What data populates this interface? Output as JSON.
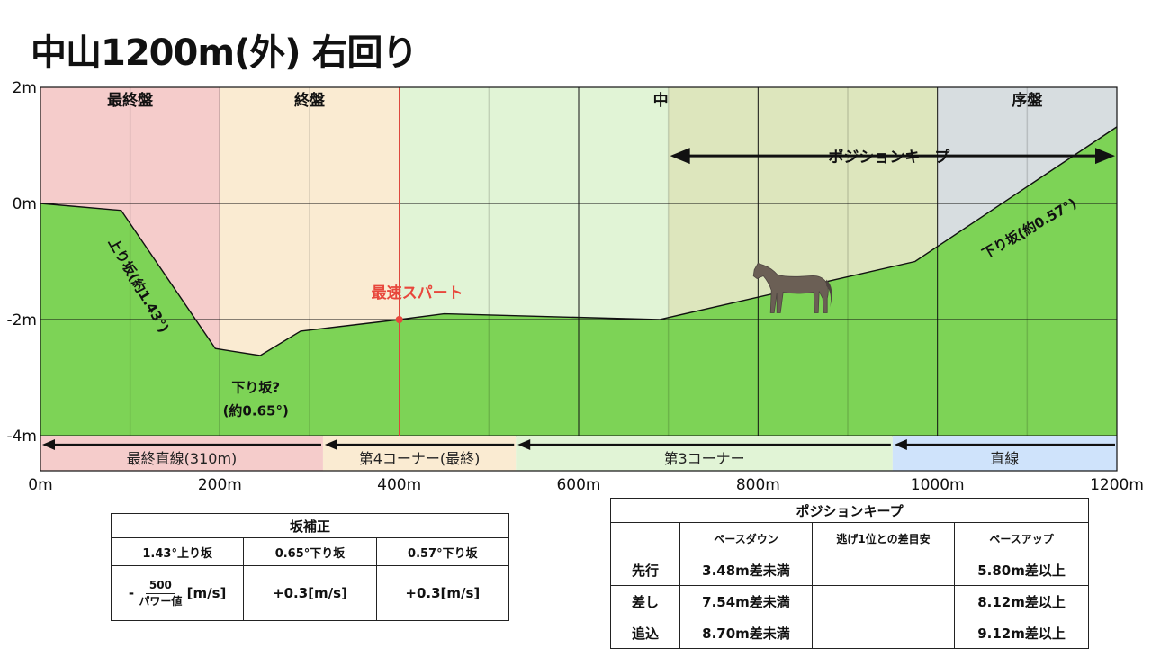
{
  "title": "中山1200m(外) 右回り",
  "chart_data": {
    "type": "area",
    "title": "中山1200m(外) 右回り",
    "xlim": [
      0,
      1200
    ],
    "ylim": [
      -4,
      2
    ],
    "x_ticks": [
      {
        "value": 0,
        "label": "0m"
      },
      {
        "value": 200,
        "label": "200m"
      },
      {
        "value": 400,
        "label": "400m"
      },
      {
        "value": 600,
        "label": "600m"
      },
      {
        "value": 800,
        "label": "800m"
      },
      {
        "value": 1000,
        "label": "1000m"
      },
      {
        "value": 1200,
        "label": "1200m"
      }
    ],
    "y_ticks": [
      {
        "value": 2,
        "label": "2m"
      },
      {
        "value": 0,
        "label": "0m"
      },
      {
        "value": -2,
        "label": "-2m"
      },
      {
        "value": -4,
        "label": "-4m"
      }
    ],
    "x_minor": [
      100,
      300,
      500,
      700,
      900,
      1100
    ],
    "grid": true,
    "elevation": [
      {
        "x": 0,
        "y": 0
      },
      {
        "x": 90,
        "y": -0.12
      },
      {
        "x": 195,
        "y": -2.5
      },
      {
        "x": 245,
        "y": -2.62
      },
      {
        "x": 290,
        "y": -2.2
      },
      {
        "x": 400,
        "y": -2.0
      },
      {
        "x": 450,
        "y": -1.9
      },
      {
        "x": 690,
        "y": -2.0
      },
      {
        "x": 975,
        "y": -1.0
      },
      {
        "x": 1200,
        "y": 1.32
      }
    ],
    "phases": [
      {
        "label": "最終盤",
        "from": 0,
        "to": 200,
        "color": "#f5cccb"
      },
      {
        "label": "終盤",
        "from": 200,
        "to": 400,
        "color": "#faebd2"
      },
      {
        "label": "中盤",
        "from": 400,
        "to": 1000,
        "color": "#e1f4d6"
      },
      {
        "label": "序盤",
        "from": 1000,
        "to": 1200,
        "color": "#d7dde0"
      }
    ],
    "position_keep": {
      "label": "ポジションキープ",
      "from": 700,
      "to": 1200,
      "band_color": "#dde6bd"
    },
    "sections": [
      {
        "label": "最終直線(310m)",
        "from": 0,
        "to": 315,
        "color": "#f5cccb"
      },
      {
        "label": "第4コーナー(最終)",
        "from": 315,
        "to": 530,
        "color": "#faebd2"
      },
      {
        "label": "第3コーナー",
        "from": 530,
        "to": 950,
        "color": "#e1f4d6"
      },
      {
        "label": "直線",
        "from": 950,
        "to": 1200,
        "color": "#cfe3fb"
      }
    ],
    "spurt": {
      "label": "最速スパート",
      "x": 400,
      "y": -2.0
    },
    "slope_labels": [
      {
        "text": "上り坂(約1.43°)",
        "x": 105,
        "y": -1.45
      },
      {
        "text": "下り坂?",
        "x": 240,
        "y": -3.25
      },
      {
        "text": "(約0.65°)",
        "x": 240,
        "y": -3.65
      },
      {
        "text": "下り坂(約0.57°)",
        "x": 1105,
        "y": -0.5
      }
    ],
    "colors": {
      "ground": "#7dd356",
      "spurt": "#e8473c"
    }
  },
  "slope_table": {
    "caption": "坂補正",
    "headers": [
      "1.43°上り坂",
      "0.65°下り坂",
      "0.57°下り坂"
    ],
    "cell1": {
      "prefix": "-",
      "numerator": "500",
      "denominator": "パワー値",
      "unit": "[m/s]"
    },
    "cell2": "+0.3[m/s]",
    "cell3": "+0.3[m/s]"
  },
  "keep_table": {
    "caption": "ポジションキープ",
    "headers": [
      "",
      "ペースダウン",
      "逃げ1位との差目安",
      "ペースアップ"
    ],
    "rows": [
      {
        "style": "先行",
        "down": "3.48m差未満",
        "mid": "",
        "up": "5.80m差以上"
      },
      {
        "style": "差し",
        "down": "7.54m差未満",
        "mid": "",
        "up": "8.12m差以上"
      },
      {
        "style": "追込",
        "down": "8.70m差未満",
        "mid": "",
        "up": "9.12m差以上"
      }
    ]
  }
}
